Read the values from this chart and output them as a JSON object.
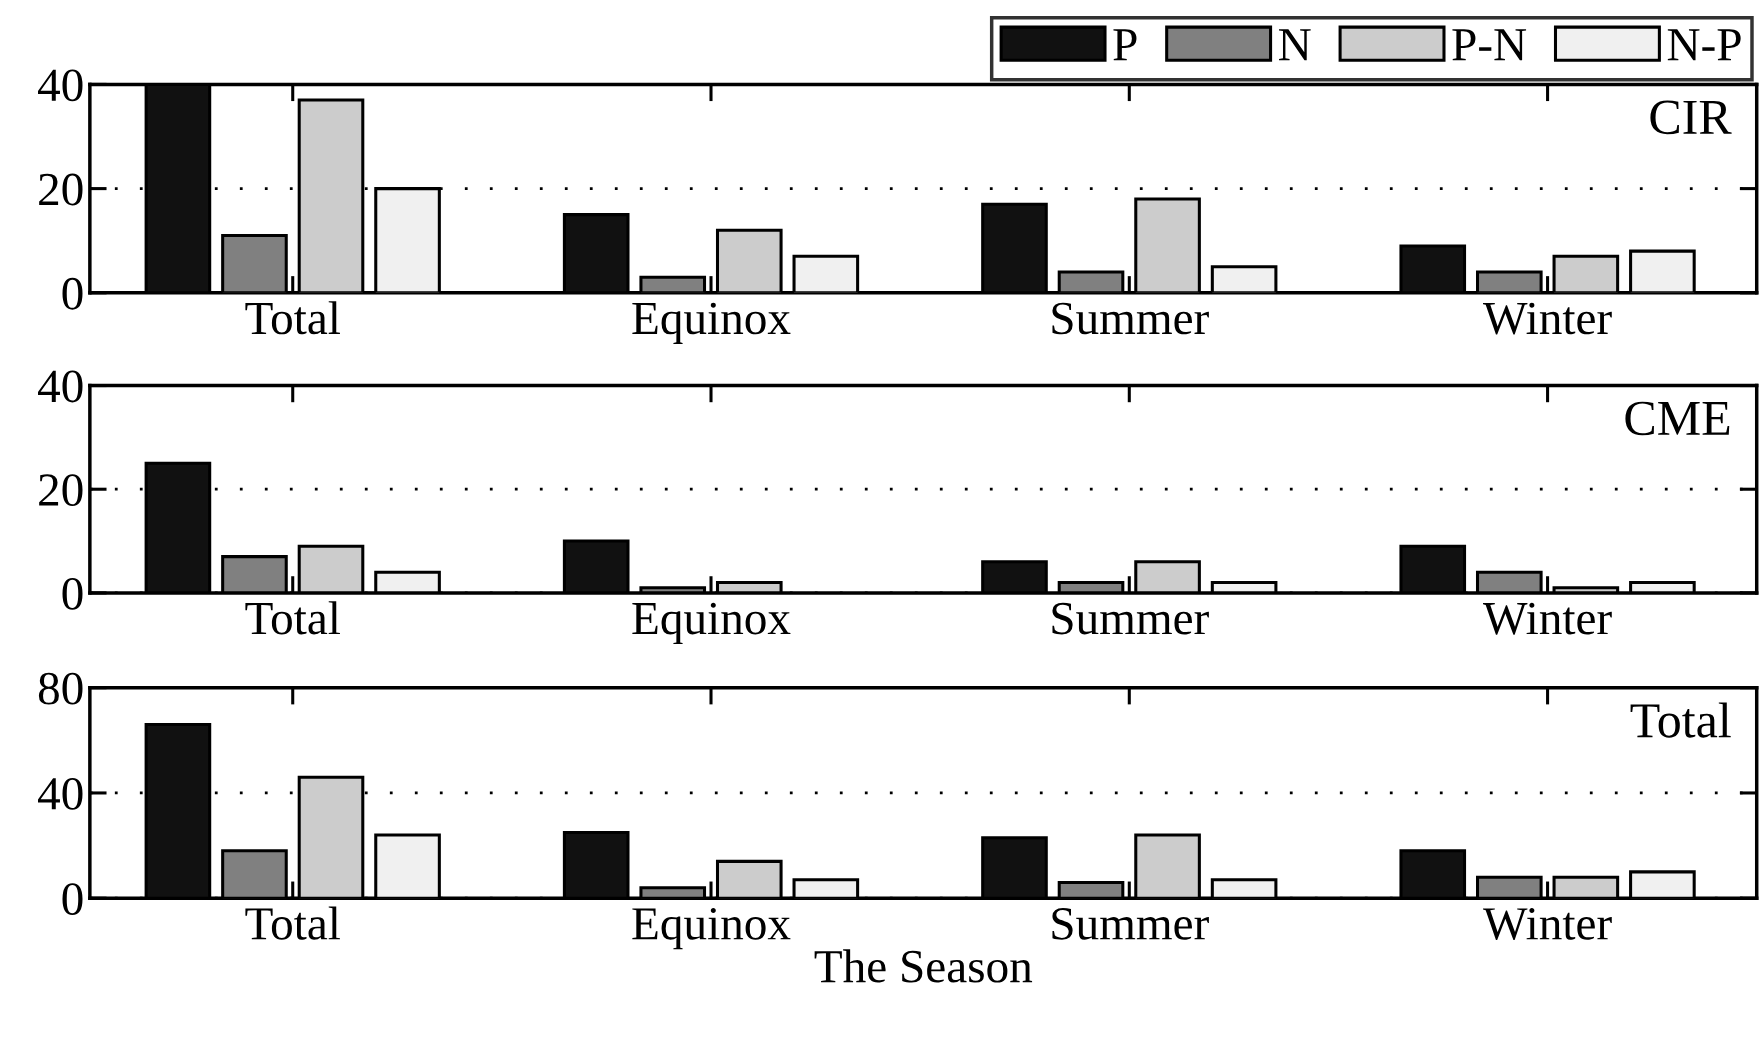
{
  "chart_data": [
    {
      "type": "bar",
      "title": "CIR",
      "categories": [
        "Total",
        "Equinox",
        "Summer",
        "Winter"
      ],
      "ylim": [
        0,
        40
      ],
      "yticks": [
        0,
        20,
        40
      ],
      "grid": "y",
      "legend": "top right",
      "series": [
        {
          "name": "P",
          "color": "#111111",
          "values": [
            40,
            15,
            17,
            9
          ]
        },
        {
          "name": "N",
          "color": "#808080",
          "values": [
            11,
            3,
            4,
            4
          ]
        },
        {
          "name": "P-N",
          "color": "#cccccc",
          "values": [
            37,
            12,
            18,
            7
          ]
        },
        {
          "name": "N-P",
          "color": "#f0f0f0",
          "values": [
            20,
            7,
            5,
            8
          ]
        }
      ]
    },
    {
      "type": "bar",
      "title": "CME",
      "categories": [
        "Total",
        "Equinox",
        "Summer",
        "Winter"
      ],
      "ylim": [
        0,
        40
      ],
      "yticks": [
        0,
        20,
        40
      ],
      "grid": "y",
      "series": [
        {
          "color": "#111111",
          "values": [
            25,
            10,
            6,
            9
          ]
        },
        {
          "color": "#808080",
          "values": [
            7,
            1,
            2,
            4
          ]
        },
        {
          "color": "#cccccc",
          "values": [
            9,
            2,
            6,
            1
          ]
        },
        {
          "color": "#f0f0f0",
          "values": [
            4,
            0,
            2,
            2
          ]
        }
      ]
    },
    {
      "type": "bar",
      "title": "Total",
      "xlabel": "The Season",
      "categories": [
        "Total",
        "Equinox",
        "Summer",
        "Winter"
      ],
      "ylim": [
        0,
        80
      ],
      "yticks": [
        0,
        40,
        80
      ],
      "grid": "y",
      "series": [
        {
          "color": "#111111",
          "values": [
            66,
            25,
            23,
            18
          ]
        },
        {
          "color": "#808080",
          "values": [
            18,
            4,
            6,
            8
          ]
        },
        {
          "color": "#cccccc",
          "values": [
            46,
            14,
            24,
            8
          ]
        },
        {
          "color": "#f0f0f0",
          "values": [
            24,
            7,
            7,
            10
          ]
        }
      ]
    }
  ]
}
